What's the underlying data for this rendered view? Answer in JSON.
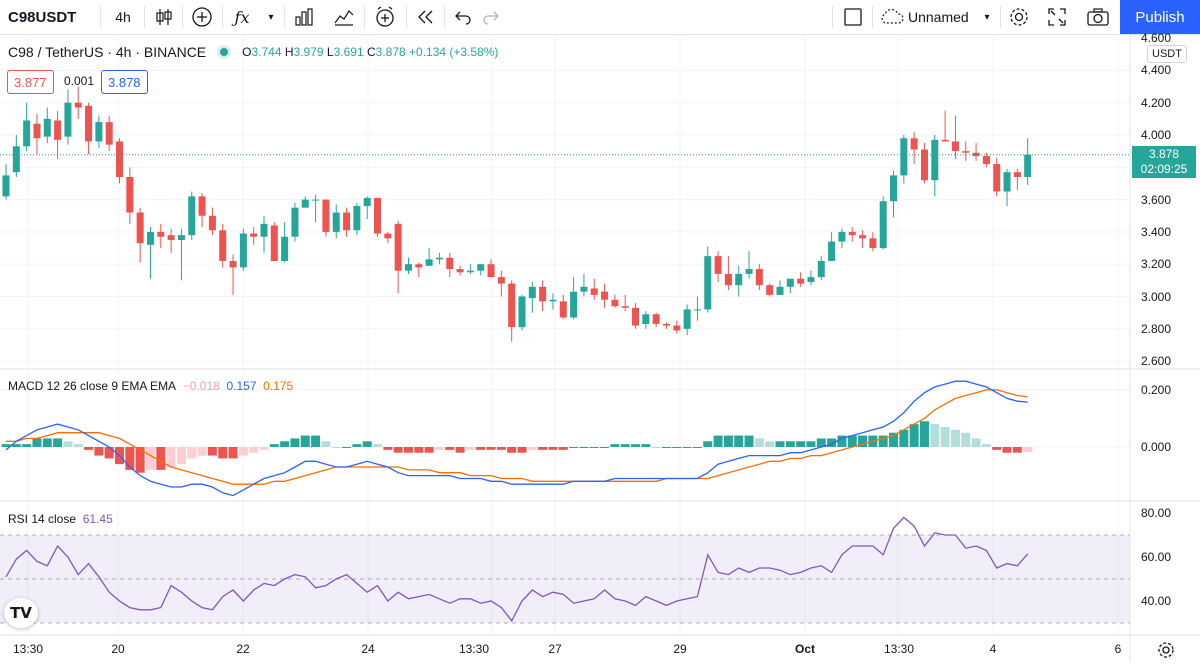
{
  "toolbar": {
    "symbol": "C98USDT",
    "interval": "4h",
    "layout_name": "Unnamed",
    "publish_label": "Publish"
  },
  "legend": {
    "title": "C98 / TetherUS · 4h · BINANCE",
    "o_label": "O",
    "o": "3.744",
    "h_label": "H",
    "h": "3.979",
    "l_label": "L",
    "l": "3.691",
    "c_label": "C",
    "c": "3.878",
    "change": "+0.134 (+3.58%)",
    "bid": "3.877",
    "spread": "0.001",
    "ask": "3.878"
  },
  "price_axis": {
    "currency": "USDT",
    "ticks": [
      "4.600",
      "4.400",
      "4.200",
      "4.000",
      "3.800",
      "3.600",
      "3.400",
      "3.200",
      "3.000",
      "2.800",
      "2.600"
    ],
    "last_price": "3.878",
    "countdown": "02:09:25"
  },
  "macd": {
    "label": "MACD 12 26 close 9 EMA EMA",
    "hist": "−0.018",
    "macd": "0.157",
    "signal": "0.175",
    "ticks": [
      "0.200",
      "0.000"
    ]
  },
  "rsi": {
    "label": "RSI 14 close",
    "value": "61.45",
    "ticks": [
      "80.00",
      "60.00",
      "40.00"
    ]
  },
  "time_axis": [
    "13:30",
    "20",
    "22",
    "24",
    "13:30",
    "27",
    "29",
    "Oct",
    "13:30",
    "4",
    "6"
  ],
  "colors": {
    "up": "#26a69a",
    "down": "#ef5350",
    "macd_line": "#2962ff",
    "signal_line": "#ff6d00",
    "rsi_line": "#7e57c2",
    "accent": "#2962ff"
  },
  "chart_data": [
    {
      "type": "candlestick",
      "title": "C98 / TetherUS · 4h · BINANCE",
      "ylim": [
        2.55,
        4.65
      ],
      "ohlc": [
        [
          3.62,
          3.75,
          3.6,
          3.82
        ],
        [
          3.77,
          3.93,
          3.74,
          4.0
        ],
        [
          3.93,
          4.09,
          3.9,
          4.2
        ],
        [
          4.07,
          3.98,
          3.88,
          4.13
        ],
        [
          3.99,
          4.1,
          3.95,
          4.17
        ],
        [
          4.09,
          3.97,
          3.85,
          4.15
        ],
        [
          3.99,
          4.2,
          3.94,
          4.28
        ],
        [
          4.2,
          4.17,
          4.1,
          4.3
        ],
        [
          4.18,
          3.96,
          3.88,
          4.2
        ],
        [
          3.96,
          4.08,
          3.92,
          4.12
        ],
        [
          4.08,
          3.94,
          3.9,
          4.12
        ],
        [
          3.96,
          3.74,
          3.7,
          3.98
        ],
        [
          3.74,
          3.52,
          3.45,
          3.8
        ],
        [
          3.52,
          3.33,
          3.21,
          3.55
        ],
        [
          3.32,
          3.4,
          3.11,
          3.43
        ],
        [
          3.4,
          3.37,
          3.3,
          3.45
        ],
        [
          3.38,
          3.35,
          3.27,
          3.42
        ],
        [
          3.35,
          3.38,
          3.1,
          3.42
        ],
        [
          3.38,
          3.62,
          3.35,
          3.65
        ],
        [
          3.62,
          3.5,
          3.43,
          3.64
        ],
        [
          3.5,
          3.41,
          3.38,
          3.55
        ],
        [
          3.41,
          3.22,
          3.18,
          3.45
        ],
        [
          3.22,
          3.18,
          3.01,
          3.26
        ],
        [
          3.18,
          3.39,
          3.16,
          3.42
        ],
        [
          3.39,
          3.37,
          3.32,
          3.43
        ],
        [
          3.37,
          3.45,
          3.27,
          3.5
        ],
        [
          3.44,
          3.22,
          3.22,
          3.46
        ],
        [
          3.22,
          3.37,
          3.21,
          3.46
        ],
        [
          3.37,
          3.55,
          3.34,
          3.58
        ],
        [
          3.55,
          3.6,
          3.55,
          3.62
        ],
        [
          3.6,
          3.6,
          3.46,
          3.63
        ],
        [
          3.6,
          3.4,
          3.37,
          3.6
        ],
        [
          3.4,
          3.52,
          3.36,
          3.57
        ],
        [
          3.52,
          3.41,
          3.37,
          3.55
        ],
        [
          3.41,
          3.56,
          3.38,
          3.58
        ],
        [
          3.56,
          3.61,
          3.48,
          3.62
        ],
        [
          3.61,
          3.39,
          3.37,
          3.61
        ],
        [
          3.39,
          3.36,
          3.33,
          3.4
        ],
        [
          3.45,
          3.16,
          3.02,
          3.47
        ],
        [
          3.16,
          3.2,
          3.14,
          3.24
        ],
        [
          3.2,
          3.18,
          3.12,
          3.21
        ],
        [
          3.19,
          3.23,
          3.19,
          3.3
        ],
        [
          3.23,
          3.24,
          3.2,
          3.27
        ],
        [
          3.24,
          3.17,
          3.12,
          3.27
        ],
        [
          3.17,
          3.15,
          3.13,
          3.19
        ],
        [
          3.15,
          3.16,
          3.14,
          3.2
        ],
        [
          3.16,
          3.2,
          3.13,
          3.2
        ],
        [
          3.2,
          3.12,
          3.12,
          3.23
        ],
        [
          3.12,
          3.08,
          3.0,
          3.16
        ],
        [
          3.08,
          2.81,
          2.72,
          3.1
        ],
        [
          2.81,
          3.0,
          2.79,
          3.01
        ],
        [
          2.99,
          3.06,
          2.9,
          3.09
        ],
        [
          3.06,
          2.97,
          2.91,
          3.1
        ],
        [
          2.97,
          2.98,
          2.92,
          3.02
        ],
        [
          2.97,
          2.87,
          2.86,
          3.01
        ],
        [
          2.87,
          3.03,
          2.86,
          3.12
        ],
        [
          3.03,
          3.06,
          3.0,
          3.14
        ],
        [
          3.05,
          3.01,
          2.98,
          3.11
        ],
        [
          3.03,
          2.98,
          2.93,
          3.08
        ],
        [
          2.98,
          2.94,
          2.93,
          3.01
        ],
        [
          2.94,
          2.93,
          2.91,
          3.01
        ],
        [
          2.93,
          2.82,
          2.8,
          2.96
        ],
        [
          2.83,
          2.89,
          2.8,
          2.91
        ],
        [
          2.89,
          2.83,
          2.81,
          2.9
        ],
        [
          2.83,
          2.82,
          2.8,
          2.84
        ],
        [
          2.82,
          2.79,
          2.77,
          2.85
        ],
        [
          2.8,
          2.92,
          2.76,
          2.95
        ],
        [
          2.92,
          2.92,
          2.85,
          3.0
        ],
        [
          2.92,
          3.25,
          2.9,
          3.31
        ],
        [
          3.25,
          3.14,
          3.09,
          3.28
        ],
        [
          3.14,
          3.07,
          3.04,
          3.25
        ],
        [
          3.07,
          3.14,
          3.0,
          3.19
        ],
        [
          3.14,
          3.17,
          3.11,
          3.28
        ],
        [
          3.17,
          3.07,
          3.04,
          3.2
        ],
        [
          3.07,
          3.01,
          3.0,
          3.08
        ],
        [
          3.01,
          3.06,
          3.01,
          3.1
        ],
        [
          3.06,
          3.11,
          3.02,
          3.11
        ],
        [
          3.11,
          3.08,
          3.06,
          3.15
        ],
        [
          3.09,
          3.12,
          3.07,
          3.16
        ],
        [
          3.12,
          3.22,
          3.1,
          3.25
        ],
        [
          3.22,
          3.34,
          3.22,
          3.4
        ],
        [
          3.34,
          3.4,
          3.3,
          3.42
        ],
        [
          3.4,
          3.38,
          3.34,
          3.43
        ],
        [
          3.38,
          3.36,
          3.3,
          3.41
        ],
        [
          3.36,
          3.3,
          3.28,
          3.4
        ],
        [
          3.3,
          3.59,
          3.29,
          3.62
        ],
        [
          3.59,
          3.75,
          3.49,
          3.78
        ],
        [
          3.75,
          3.98,
          3.7,
          4.0
        ],
        [
          3.98,
          3.91,
          3.82,
          4.02
        ],
        [
          3.91,
          3.72,
          3.7,
          3.95
        ],
        [
          3.72,
          3.97,
          3.62,
          4.0
        ],
        [
          3.97,
          3.96,
          3.96,
          4.15
        ],
        [
          3.96,
          3.9,
          3.85,
          4.12
        ],
        [
          3.9,
          3.89,
          3.84,
          3.96
        ],
        [
          3.89,
          3.87,
          3.84,
          3.95
        ],
        [
          3.87,
          3.82,
          3.8,
          3.89
        ],
        [
          3.82,
          3.65,
          3.62,
          3.86
        ],
        [
          3.65,
          3.77,
          3.56,
          3.79
        ],
        [
          3.77,
          3.74,
          3.66,
          3.79
        ],
        [
          3.74,
          3.878,
          3.69,
          3.98
        ]
      ]
    },
    {
      "type": "line",
      "title": "MACD 12 26 close 9 EMA EMA",
      "series": [
        {
          "name": "MACD",
          "values": [
            -0.01,
            0.02,
            0.04,
            0.06,
            0.07,
            0.08,
            0.07,
            0.06,
            0.04,
            0.02,
            0.0,
            -0.03,
            -0.07,
            -0.1,
            -0.12,
            -0.13,
            -0.14,
            -0.14,
            -0.13,
            -0.13,
            -0.14,
            -0.16,
            -0.17,
            -0.15,
            -0.13,
            -0.11,
            -0.1,
            -0.09,
            -0.07,
            -0.05,
            -0.05,
            -0.06,
            -0.07,
            -0.07,
            -0.06,
            -0.05,
            -0.06,
            -0.07,
            -0.09,
            -0.1,
            -0.1,
            -0.1,
            -0.1,
            -0.1,
            -0.11,
            -0.11,
            -0.11,
            -0.12,
            -0.12,
            -0.13,
            -0.13,
            -0.13,
            -0.13,
            -0.13,
            -0.13,
            -0.12,
            -0.12,
            -0.12,
            -0.12,
            -0.11,
            -0.11,
            -0.11,
            -0.11,
            -0.11,
            -0.11,
            -0.11,
            -0.11,
            -0.11,
            -0.09,
            -0.06,
            -0.05,
            -0.04,
            -0.03,
            -0.03,
            -0.03,
            -0.03,
            -0.02,
            -0.02,
            -0.01,
            0.0,
            0.01,
            0.03,
            0.04,
            0.05,
            0.06,
            0.07,
            0.09,
            0.12,
            0.16,
            0.19,
            0.21,
            0.22,
            0.23,
            0.23,
            0.22,
            0.21,
            0.19,
            0.17,
            0.16,
            0.157
          ]
        },
        {
          "name": "Signal",
          "values": [
            0.02,
            0.02,
            0.03,
            0.03,
            0.04,
            0.05,
            0.05,
            0.05,
            0.05,
            0.05,
            0.04,
            0.03,
            0.01,
            -0.01,
            -0.03,
            -0.05,
            -0.07,
            -0.08,
            -0.09,
            -0.1,
            -0.11,
            -0.12,
            -0.13,
            -0.13,
            -0.13,
            -0.13,
            -0.12,
            -0.12,
            -0.11,
            -0.1,
            -0.09,
            -0.08,
            -0.07,
            -0.07,
            -0.07,
            -0.07,
            -0.07,
            -0.07,
            -0.07,
            -0.08,
            -0.08,
            -0.08,
            -0.09,
            -0.09,
            -0.09,
            -0.1,
            -0.1,
            -0.1,
            -0.11,
            -0.11,
            -0.11,
            -0.12,
            -0.12,
            -0.12,
            -0.12,
            -0.12,
            -0.12,
            -0.12,
            -0.12,
            -0.12,
            -0.12,
            -0.12,
            -0.12,
            -0.12,
            -0.11,
            -0.11,
            -0.11,
            -0.11,
            -0.11,
            -0.1,
            -0.09,
            -0.08,
            -0.07,
            -0.06,
            -0.05,
            -0.05,
            -0.04,
            -0.04,
            -0.03,
            -0.03,
            -0.02,
            -0.01,
            0.0,
            0.01,
            0.02,
            0.03,
            0.04,
            0.06,
            0.08,
            0.1,
            0.13,
            0.15,
            0.17,
            0.18,
            0.19,
            0.2,
            0.2,
            0.19,
            0.18,
            0.175
          ]
        }
      ],
      "histogram": [
        0.01,
        0.01,
        0.01,
        0.03,
        0.03,
        0.03,
        0.02,
        0.01,
        -0.01,
        -0.03,
        -0.04,
        -0.06,
        -0.08,
        -0.09,
        -0.08,
        -0.08,
        -0.07,
        -0.06,
        -0.04,
        -0.03,
        -0.03,
        -0.04,
        -0.04,
        -0.03,
        -0.02,
        -0.01,
        0.01,
        0.02,
        0.03,
        0.04,
        0.04,
        0.02,
        0.0,
        0.0,
        0.01,
        0.02,
        0.01,
        -0.01,
        -0.02,
        -0.02,
        -0.02,
        -0.02,
        -0.01,
        -0.01,
        -0.02,
        -0.01,
        -0.01,
        -0.01,
        -0.01,
        -0.02,
        -0.02,
        -0.01,
        -0.01,
        -0.01,
        -0.01,
        0.0,
        0.0,
        0.0,
        0.0,
        0.01,
        0.01,
        0.01,
        0.01,
        0.0,
        0.0,
        0.0,
        0.0,
        0.0,
        0.02,
        0.04,
        0.04,
        0.04,
        0.04,
        0.03,
        0.02,
        0.02,
        0.02,
        0.02,
        0.02,
        0.03,
        0.03,
        0.04,
        0.04,
        0.04,
        0.04,
        0.04,
        0.05,
        0.06,
        0.08,
        0.09,
        0.08,
        0.07,
        0.06,
        0.05,
        0.03,
        0.01,
        -0.01,
        -0.02,
        -0.02,
        -0.018
      ],
      "ylim": [
        -0.22,
        0.28
      ]
    },
    {
      "type": "line",
      "title": "RSI 14 close",
      "series": [
        {
          "name": "RSI",
          "values": [
            51,
            59,
            63,
            58,
            56,
            65,
            60,
            52,
            57,
            51,
            44,
            40,
            37,
            36,
            36,
            37,
            47,
            44,
            40,
            37,
            36,
            42,
            45,
            40,
            45,
            48,
            47,
            50,
            52,
            51,
            46,
            47,
            50,
            52,
            48,
            44,
            47,
            40,
            44,
            41,
            42,
            43,
            41,
            39,
            41,
            41,
            39,
            40,
            37,
            31,
            40,
            45,
            42,
            44,
            43,
            39,
            40,
            41,
            45,
            41,
            40,
            38,
            42,
            40,
            38,
            40,
            41,
            42,
            61,
            53,
            52,
            55,
            53,
            55,
            55,
            54,
            52,
            53,
            55,
            56,
            53,
            61,
            65,
            65,
            65,
            61,
            73,
            78,
            74,
            65,
            71,
            70,
            70,
            64,
            65,
            63,
            55,
            57,
            56,
            61.45
          ]
        }
      ],
      "ylim": [
        27,
        85
      ],
      "bands": [
        70,
        50,
        30
      ]
    }
  ]
}
